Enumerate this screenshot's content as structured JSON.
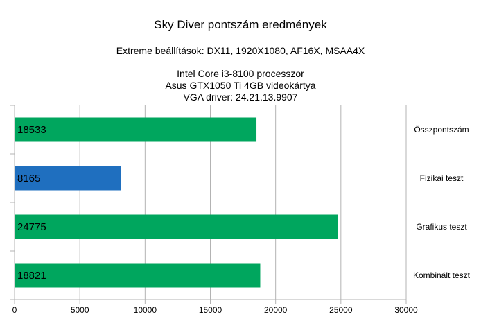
{
  "chart_data": {
    "type": "bar",
    "orientation": "horizontal",
    "title": "Sky Diver pontszám eredmények",
    "subtitle": "Extreme beállítások: DX11, 1920X1080, AF16X, MSAA4X",
    "subtitle2": [
      "Intel Core i3-8100 processzor",
      "Asus GTX1050 Ti 4GB videokártya",
      "VGA driver: 24.21.13.9907"
    ],
    "categories": [
      "Összpontszám",
      "Fizikai teszt",
      "Grafikus teszt",
      "Kombinált teszt"
    ],
    "values": [
      18533,
      8165,
      24775,
      18821
    ],
    "data_labels": [
      "18533",
      "8165",
      "24775",
      "18821"
    ],
    "bar_colors": [
      "#00a65e",
      "#1f6fbf",
      "#00a65e",
      "#00a65e"
    ],
    "xlim": [
      0,
      30000
    ],
    "xticks": [
      0,
      5000,
      10000,
      15000,
      20000,
      25000,
      30000
    ],
    "xtick_labels": [
      "0",
      "5000",
      "10000",
      "15000",
      "20000",
      "25000",
      "30000"
    ],
    "grid": "vertical",
    "category_labels_side": "right"
  }
}
